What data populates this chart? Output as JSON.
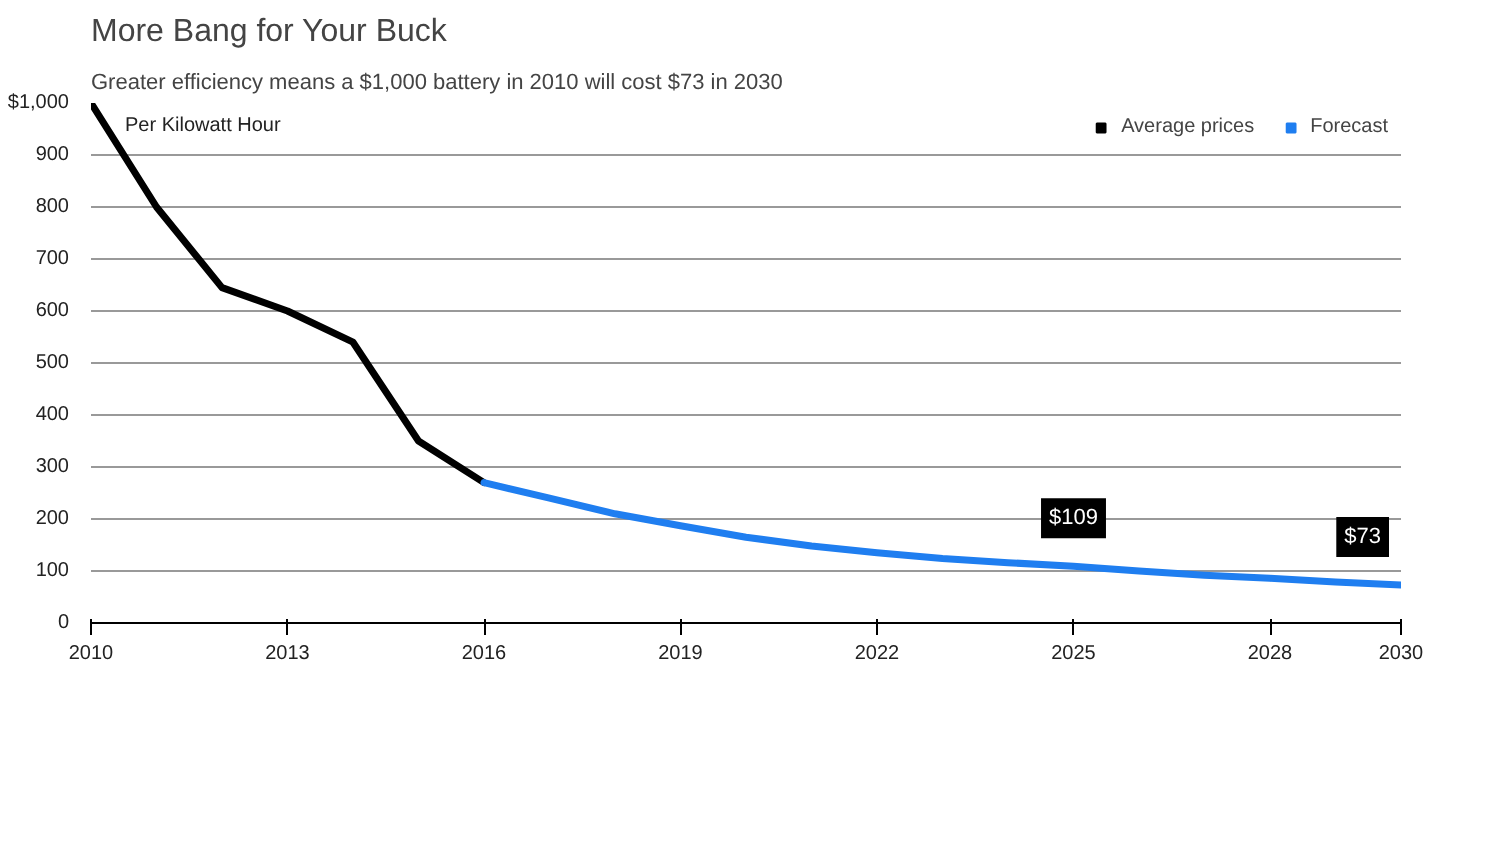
{
  "chart_data": {
    "type": "line",
    "title": "More Bang for Your Buck",
    "subtitle": "Greater efficiency means a $1,000 battery in 2010 will cost $73 in 2030",
    "series": [
      {
        "name": "Average prices",
        "color": "#000000",
        "x": [
          2010,
          2011,
          2012,
          2013,
          2014,
          2015,
          2016
        ],
        "values": [
          1000,
          800,
          645,
          600,
          540,
          350,
          270
        ]
      },
      {
        "name": "Forecast",
        "color": "#1f7ef0",
        "x": [
          2016,
          2017,
          2018,
          2019,
          2020,
          2021,
          2022,
          2023,
          2024,
          2025,
          2026,
          2027,
          2028,
          2029,
          2030
        ],
        "values": [
          270,
          240,
          210,
          187,
          165,
          148,
          135,
          124,
          116,
          109,
          100,
          92,
          86,
          79,
          73
        ]
      }
    ],
    "xlim": [
      2010,
      2030
    ],
    "xticks": [
      2010,
      2013,
      2016,
      2019,
      2022,
      2025,
      2028,
      2030
    ],
    "ylim": [
      0,
      1000
    ],
    "yticks": [
      0,
      100,
      200,
      300,
      400,
      500,
      600,
      700,
      800,
      900,
      {
        "value": 1000,
        "label": "$1,000"
      }
    ],
    "annotations": [
      "Per Kilowatt Hour",
      {
        "text": "$109",
        "x": 2025,
        "y": 109
      },
      {
        "text": "$73",
        "x": 2030,
        "y": 73
      }
    ],
    "grid": "y",
    "legend": "top right",
    "marker": "none",
    "line_style": "solid"
  }
}
